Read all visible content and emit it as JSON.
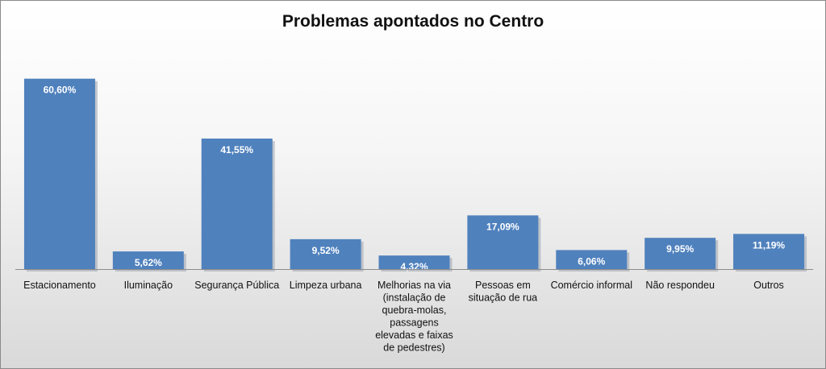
{
  "chart_data": {
    "type": "bar",
    "title": "Problemas apontados no Centro",
    "xlabel": "",
    "ylabel": "",
    "ylim": [
      0,
      70
    ],
    "grid": false,
    "legend": "none",
    "categories": [
      "Estacionamento",
      "Iluminação",
      "Segurança Pública",
      "Limpeza urbana",
      "Melhorias na via (instalação de quebra-molas, passagens elevadas e faixas de pedestres)",
      "Pessoas em situação de rua",
      "Comércio informal",
      "Não respondeu",
      "Outros"
    ],
    "values": [
      60.6,
      5.62,
      41.55,
      9.52,
      4.32,
      17.09,
      6.06,
      9.95,
      11.19
    ],
    "value_labels": [
      "60,60%",
      "5,62%",
      "41,55%",
      "9,52%",
      "4,32%",
      "17,09%",
      "6,06%",
      "9,95%",
      "11,19%"
    ],
    "bar_color": "#4f81bd",
    "label_color": "#ffffff"
  }
}
